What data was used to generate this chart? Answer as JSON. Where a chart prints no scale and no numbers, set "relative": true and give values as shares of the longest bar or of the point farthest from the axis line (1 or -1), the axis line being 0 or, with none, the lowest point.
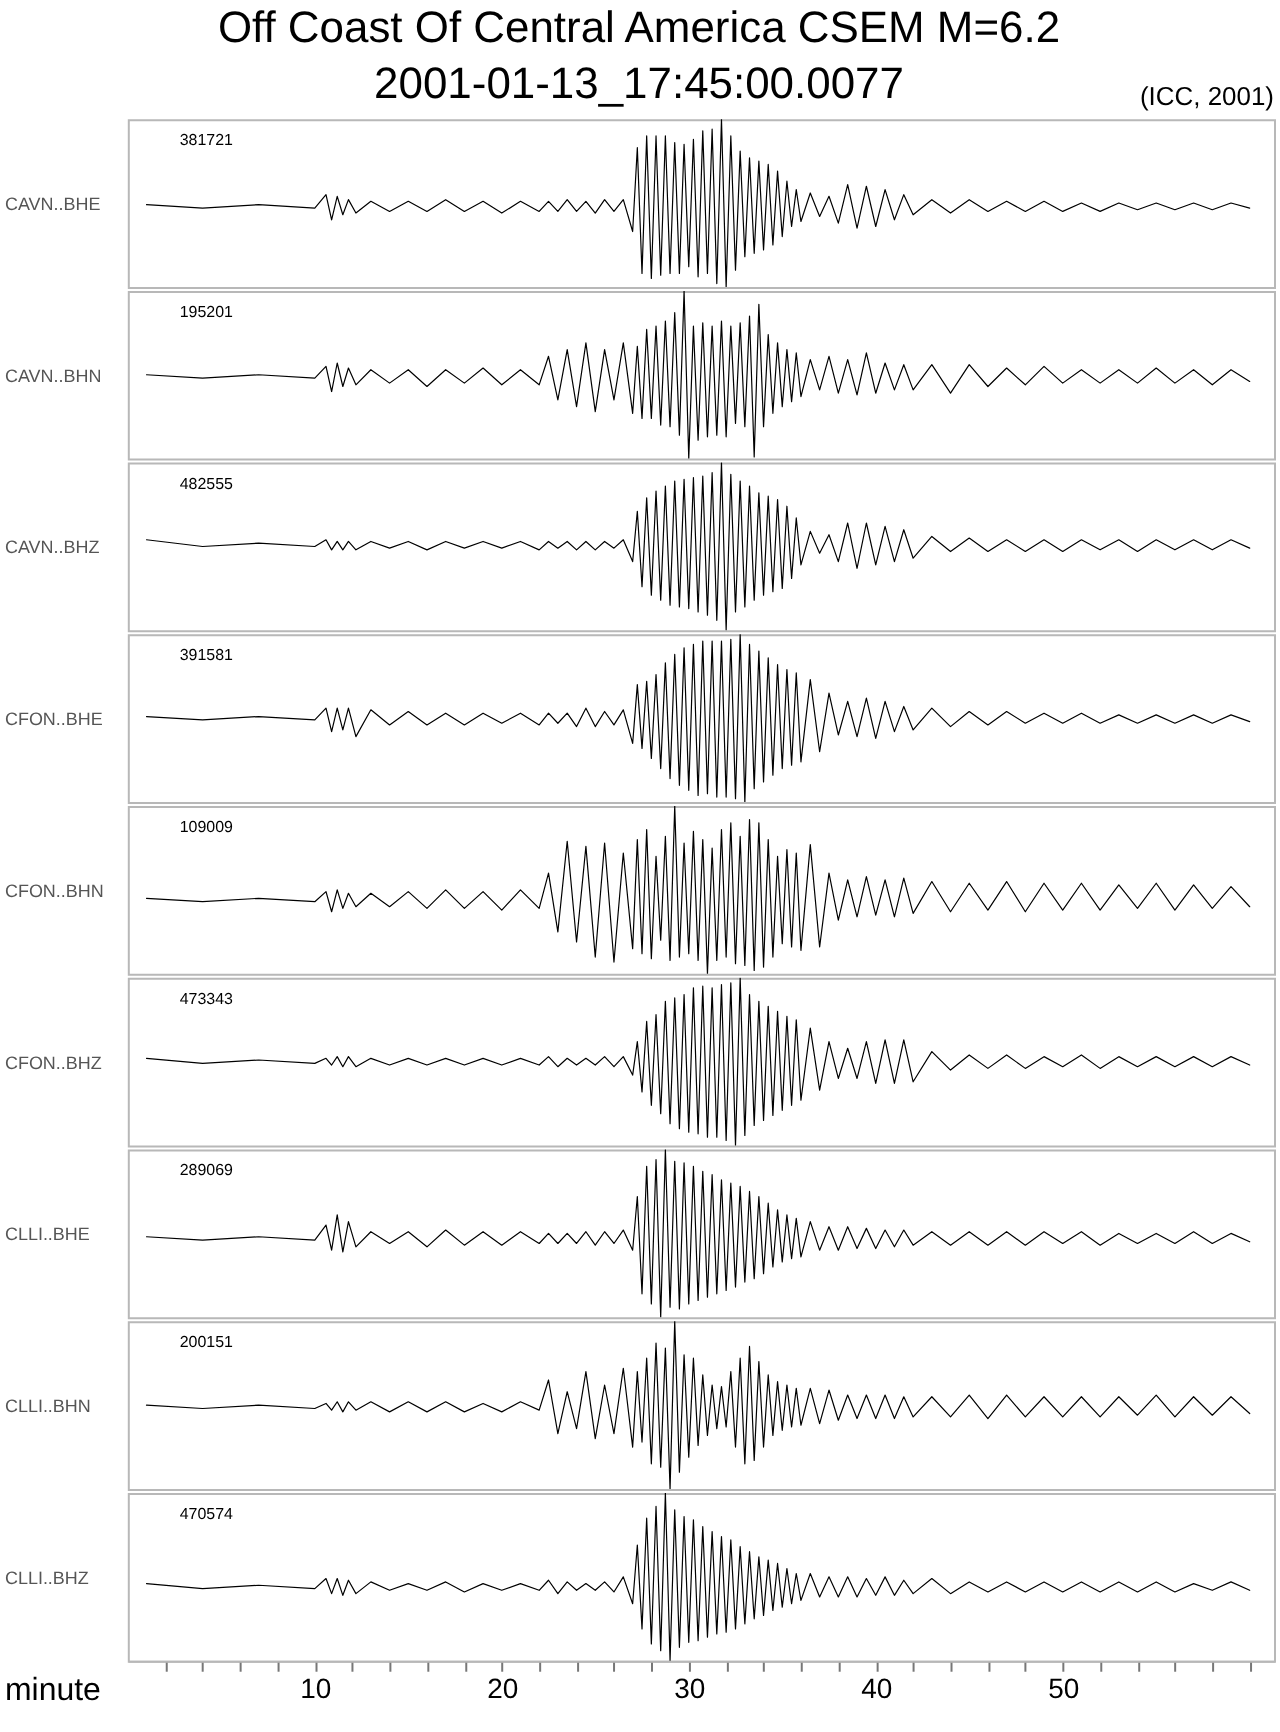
{
  "chart_data": [
    {
      "type": "line",
      "title": "Off Coast Of Central America CSEM M=6.2",
      "subtitle": "2001-01-13_17:45:00.0077",
      "annotations": [
        "(ICC, 2001)",
        "381721"
      ],
      "ylabel": "CAVN..BHE",
      "relative": true,
      "tick_labels": false,
      "xlim": [
        0,
        61.3
      ],
      "x": [
        1,
        4,
        7,
        10,
        10.6,
        10.9,
        11.2,
        11.5,
        11.8,
        12.2,
        13,
        14,
        15,
        16,
        17,
        18,
        19,
        20,
        21,
        22,
        22.5,
        23,
        23.5,
        24,
        24.5,
        25,
        25.5,
        26,
        26.5,
        27,
        27.25,
        27.5,
        27.75,
        28,
        28.25,
        28.5,
        28.75,
        29,
        29.25,
        29.5,
        29.75,
        30,
        30.25,
        30.5,
        30.75,
        31,
        31.25,
        31.5,
        31.75,
        32,
        32.25,
        32.5,
        32.75,
        33,
        33.25,
        33.5,
        33.75,
        34,
        34.25,
        34.5,
        34.75,
        35,
        35.25,
        35.5,
        35.75,
        36,
        36.5,
        37,
        37.5,
        38,
        38.5,
        39,
        39.5,
        40,
        40.5,
        41,
        41.5,
        42,
        43,
        44,
        45,
        46,
        47,
        48,
        49,
        50,
        51,
        52,
        53,
        54,
        55,
        56,
        57,
        58,
        59,
        60
      ],
      "series": [
        {
          "color": "#000000",
          "values": [
            0.49,
            0.47,
            0.49,
            0.47,
            0.55,
            0.4,
            0.54,
            0.43,
            0.52,
            0.44,
            0.51,
            0.45,
            0.51,
            0.45,
            0.52,
            0.45,
            0.51,
            0.44,
            0.51,
            0.45,
            0.51,
            0.45,
            0.52,
            0.45,
            0.51,
            0.44,
            0.52,
            0.45,
            0.52,
            0.33,
            0.83,
            0.08,
            0.9,
            0.05,
            0.9,
            0.07,
            0.9,
            0.08,
            0.86,
            0.08,
            0.85,
            0.12,
            0.88,
            0.06,
            0.93,
            0.08,
            0.94,
            0.02,
            1,
            0,
            0.9,
            0.1,
            0.81,
            0.18,
            0.77,
            0.2,
            0.75,
            0.22,
            0.73,
            0.25,
            0.69,
            0.3,
            0.63,
            0.36,
            0.58,
            0.39,
            0.56,
            0.42,
            0.54,
            0.38,
            0.61,
            0.35,
            0.6,
            0.36,
            0.58,
            0.4,
            0.55,
            0.43,
            0.52,
            0.44,
            0.52,
            0.45,
            0.51,
            0.45,
            0.51,
            0.45,
            0.5,
            0.45,
            0.5,
            0.46,
            0.5,
            0.46,
            0.5,
            0.46,
            0.5,
            0.47
          ]
        }
      ]
    },
    {
      "type": "line",
      "annotations": [
        "195201"
      ],
      "ylabel": "CAVN..BHN",
      "relative": true,
      "tick_labels": false,
      "xlim": [
        0,
        61.3
      ],
      "x": [
        1,
        4,
        7,
        10,
        10.6,
        10.9,
        11.2,
        11.5,
        11.8,
        12.2,
        13,
        14,
        15,
        16,
        17,
        18,
        19,
        20,
        21,
        22,
        22.5,
        23,
        23.5,
        24,
        24.5,
        25,
        25.5,
        26,
        26.5,
        27,
        27.25,
        27.5,
        27.75,
        28,
        28.25,
        28.5,
        28.75,
        29,
        29.25,
        29.5,
        29.75,
        30,
        30.25,
        30.5,
        30.75,
        31,
        31.25,
        31.5,
        31.75,
        32,
        32.25,
        32.5,
        32.75,
        33,
        33.25,
        33.5,
        33.75,
        34,
        34.25,
        34.5,
        34.75,
        35,
        35.25,
        35.5,
        35.75,
        36,
        36.5,
        37,
        37.5,
        38,
        38.5,
        39,
        39.5,
        40,
        40.5,
        41,
        41.5,
        42,
        43,
        44,
        45,
        46,
        47,
        48,
        49,
        50,
        51,
        52,
        53,
        54,
        55,
        56,
        57,
        58,
        59,
        60
      ],
      "series": [
        {
          "color": "#000000",
          "values": [
            0.5,
            0.48,
            0.5,
            0.48,
            0.55,
            0.4,
            0.57,
            0.43,
            0.54,
            0.44,
            0.53,
            0.45,
            0.53,
            0.43,
            0.53,
            0.45,
            0.54,
            0.44,
            0.53,
            0.44,
            0.61,
            0.35,
            0.65,
            0.31,
            0.69,
            0.28,
            0.65,
            0.35,
            0.69,
            0.27,
            0.67,
            0.24,
            0.77,
            0.24,
            0.79,
            0.2,
            0.82,
            0.19,
            0.87,
            0.14,
            1,
            0,
            0.79,
            0.11,
            0.81,
            0.13,
            0.79,
            0.14,
            0.82,
            0.13,
            0.79,
            0.21,
            0.81,
            0.19,
            0.85,
            0.01,
            0.92,
            0.19,
            0.74,
            0.27,
            0.69,
            0.31,
            0.65,
            0.34,
            0.63,
            0.37,
            0.59,
            0.41,
            0.61,
            0.39,
            0.59,
            0.38,
            0.63,
            0.39,
            0.57,
            0.41,
            0.56,
            0.41,
            0.56,
            0.39,
            0.56,
            0.43,
            0.54,
            0.44,
            0.55,
            0.45,
            0.53,
            0.45,
            0.53,
            0.45,
            0.54,
            0.45,
            0.53,
            0.44,
            0.53,
            0.46
          ]
        }
      ]
    },
    {
      "type": "line",
      "annotations": [
        "482555"
      ],
      "ylabel": "CAVN..BHZ",
      "relative": true,
      "tick_labels": false,
      "xlim": [
        0,
        61.3
      ],
      "x": [
        1,
        4,
        7,
        10,
        10.6,
        10.9,
        11.2,
        11.5,
        11.8,
        12.2,
        13,
        14,
        15,
        16,
        17,
        18,
        19,
        20,
        21,
        22,
        22.5,
        23,
        23.5,
        24,
        24.5,
        25,
        25.5,
        26,
        26.5,
        27,
        27.25,
        27.5,
        27.75,
        28,
        28.25,
        28.5,
        28.75,
        29,
        29.25,
        29.5,
        29.75,
        30,
        30.25,
        30.5,
        30.75,
        31,
        31.25,
        31.5,
        31.75,
        32,
        32.25,
        32.5,
        32.75,
        33,
        33.25,
        33.5,
        33.75,
        34,
        34.25,
        34.5,
        34.75,
        35,
        35.25,
        35.5,
        35.75,
        36,
        36.5,
        37,
        37.5,
        38,
        38.5,
        39,
        39.5,
        40,
        40.5,
        41,
        41.5,
        42,
        43,
        44,
        45,
        46,
        47,
        48,
        49,
        50,
        51,
        52,
        53,
        54,
        55,
        56,
        57,
        58,
        59,
        60
      ],
      "series": [
        {
          "color": "#000000",
          "values": [
            0.54,
            0.5,
            0.52,
            0.5,
            0.54,
            0.48,
            0.53,
            0.48,
            0.53,
            0.48,
            0.53,
            0.49,
            0.53,
            0.48,
            0.53,
            0.49,
            0.53,
            0.49,
            0.53,
            0.48,
            0.53,
            0.49,
            0.53,
            0.48,
            0.53,
            0.48,
            0.53,
            0.49,
            0.54,
            0.41,
            0.71,
            0.26,
            0.79,
            0.21,
            0.83,
            0.18,
            0.86,
            0.15,
            0.89,
            0.14,
            0.9,
            0.13,
            0.91,
            0.11,
            0.92,
            0.09,
            0.94,
            0.06,
            1,
            0,
            0.93,
            0.11,
            0.89,
            0.14,
            0.86,
            0.18,
            0.82,
            0.21,
            0.8,
            0.23,
            0.78,
            0.25,
            0.74,
            0.31,
            0.67,
            0.39,
            0.59,
            0.46,
            0.57,
            0.41,
            0.64,
            0.37,
            0.64,
            0.39,
            0.62,
            0.41,
            0.6,
            0.43,
            0.56,
            0.47,
            0.55,
            0.47,
            0.54,
            0.47,
            0.54,
            0.47,
            0.54,
            0.48,
            0.54,
            0.47,
            0.54,
            0.48,
            0.54,
            0.48,
            0.54,
            0.49
          ]
        }
      ]
    },
    {
      "type": "line",
      "annotations": [
        "391581"
      ],
      "ylabel": "CFON..BHE",
      "relative": true,
      "tick_labels": false,
      "xlim": [
        0,
        61.3
      ],
      "x": [
        1,
        4,
        7,
        10,
        10.6,
        10.9,
        11.2,
        11.5,
        11.8,
        12.2,
        13,
        14,
        15,
        16,
        17,
        18,
        19,
        20,
        21,
        22,
        22.5,
        23,
        23.5,
        24,
        24.5,
        25,
        25.5,
        26,
        26.5,
        27,
        27.25,
        27.5,
        27.75,
        28,
        28.25,
        28.5,
        28.75,
        29,
        29.25,
        29.5,
        29.75,
        30,
        30.25,
        30.5,
        30.75,
        31,
        31.25,
        31.5,
        31.75,
        32,
        32.25,
        32.5,
        32.75,
        33,
        33.25,
        33.5,
        33.75,
        34,
        34.25,
        34.5,
        34.75,
        35,
        35.25,
        35.5,
        35.75,
        36,
        36.5,
        37,
        37.5,
        38,
        38.5,
        39,
        39.5,
        40,
        40.5,
        41,
        41.5,
        42,
        43,
        44,
        45,
        46,
        47,
        48,
        49,
        50,
        51,
        52,
        53,
        54,
        55,
        56,
        57,
        58,
        59,
        60
      ],
      "series": [
        {
          "color": "#000000",
          "values": [
            0.51,
            0.49,
            0.51,
            0.49,
            0.56,
            0.42,
            0.56,
            0.43,
            0.56,
            0.39,
            0.55,
            0.46,
            0.54,
            0.46,
            0.53,
            0.46,
            0.53,
            0.47,
            0.53,
            0.46,
            0.53,
            0.47,
            0.53,
            0.45,
            0.56,
            0.45,
            0.54,
            0.46,
            0.55,
            0.35,
            0.7,
            0.32,
            0.72,
            0.26,
            0.76,
            0.2,
            0.83,
            0.14,
            0.88,
            0.1,
            0.92,
            0.07,
            0.94,
            0.04,
            0.96,
            0.05,
            0.96,
            0.03,
            0.96,
            0.03,
            0.97,
            0.02,
            1,
            0,
            0.94,
            0.08,
            0.9,
            0.12,
            0.86,
            0.16,
            0.82,
            0.2,
            0.79,
            0.22,
            0.77,
            0.24,
            0.73,
            0.3,
            0.65,
            0.4,
            0.6,
            0.39,
            0.62,
            0.38,
            0.6,
            0.42,
            0.57,
            0.43,
            0.56,
            0.45,
            0.54,
            0.46,
            0.54,
            0.47,
            0.53,
            0.47,
            0.53,
            0.47,
            0.52,
            0.47,
            0.52,
            0.47,
            0.52,
            0.47,
            0.52,
            0.48
          ]
        }
      ]
    },
    {
      "type": "line",
      "annotations": [
        "109009"
      ],
      "ylabel": "CFON..BHN",
      "relative": true,
      "tick_labels": false,
      "xlim": [
        0,
        61.3
      ],
      "x": [
        1,
        4,
        7,
        10,
        10.6,
        10.9,
        11.2,
        11.5,
        11.8,
        12.2,
        13,
        14,
        15,
        16,
        17,
        18,
        19,
        20,
        21,
        22,
        22.5,
        23,
        23.5,
        24,
        24.5,
        25,
        25.5,
        26,
        26.5,
        27,
        27.25,
        27.5,
        27.75,
        28,
        28.25,
        28.5,
        28.75,
        29,
        29.25,
        29.5,
        29.75,
        30,
        30.25,
        30.5,
        30.75,
        31,
        31.25,
        31.5,
        31.75,
        32,
        32.25,
        32.5,
        32.75,
        33,
        33.25,
        33.5,
        33.75,
        34,
        34.25,
        34.5,
        34.75,
        35,
        35.25,
        35.5,
        35.75,
        36,
        36.5,
        37,
        37.5,
        38,
        38.5,
        39,
        39.5,
        40,
        40.5,
        41,
        41.5,
        42,
        43,
        44,
        45,
        46,
        47,
        48,
        49,
        50,
        51,
        52,
        53,
        54,
        55,
        56,
        57,
        58,
        59,
        60
      ],
      "series": [
        {
          "color": "#000000",
          "values": [
            0.45,
            0.43,
            0.45,
            0.43,
            0.49,
            0.37,
            0.5,
            0.39,
            0.48,
            0.4,
            0.48,
            0.4,
            0.49,
            0.39,
            0.5,
            0.39,
            0.49,
            0.38,
            0.5,
            0.39,
            0.6,
            0.25,
            0.79,
            0.19,
            0.76,
            0.1,
            0.78,
            0.07,
            0.72,
            0.15,
            0.8,
            0.12,
            0.86,
            0.09,
            0.7,
            0.2,
            0.82,
            0.08,
            1,
            0.1,
            0.78,
            0.12,
            0.85,
            0.08,
            0.8,
            0,
            0.75,
            0.08,
            0.86,
            0.1,
            0.9,
            0.06,
            0.82,
            0.05,
            0.92,
            0.02,
            0.9,
            0.04,
            0.8,
            0.1,
            0.7,
            0.18,
            0.74,
            0.16,
            0.72,
            0.14,
            0.77,
            0.16,
            0.6,
            0.32,
            0.56,
            0.34,
            0.58,
            0.35,
            0.56,
            0.34,
            0.57,
            0.36,
            0.55,
            0.37,
            0.54,
            0.38,
            0.55,
            0.37,
            0.54,
            0.38,
            0.54,
            0.38,
            0.53,
            0.39,
            0.54,
            0.38,
            0.53,
            0.39,
            0.52,
            0.4
          ]
        }
      ]
    },
    {
      "type": "line",
      "annotations": [
        "473343"
      ],
      "ylabel": "CFON..BHZ",
      "relative": true,
      "tick_labels": false,
      "xlim": [
        0,
        61.3
      ],
      "x": [
        1,
        4,
        7,
        10,
        10.6,
        10.9,
        11.2,
        11.5,
        11.8,
        12.2,
        13,
        14,
        15,
        16,
        17,
        18,
        19,
        20,
        21,
        22,
        22.5,
        23,
        23.5,
        24,
        24.5,
        25,
        25.5,
        26,
        26.5,
        27,
        27.25,
        27.5,
        27.75,
        28,
        28.25,
        28.5,
        28.75,
        29,
        29.25,
        29.5,
        29.75,
        30,
        30.25,
        30.5,
        30.75,
        31,
        31.25,
        31.5,
        31.75,
        32,
        32.25,
        32.5,
        32.75,
        33,
        33.25,
        33.5,
        33.75,
        34,
        34.25,
        34.5,
        34.75,
        35,
        35.25,
        35.5,
        35.75,
        36,
        36.5,
        37,
        37.5,
        38,
        38.5,
        39,
        39.5,
        40,
        40.5,
        41,
        41.5,
        42,
        43,
        44,
        45,
        46,
        47,
        48,
        49,
        50,
        51,
        52,
        53,
        54,
        55,
        56,
        57,
        58,
        59,
        60
      ],
      "series": [
        {
          "color": "#000000",
          "values": [
            0.52,
            0.49,
            0.51,
            0.49,
            0.52,
            0.48,
            0.53,
            0.47,
            0.53,
            0.47,
            0.52,
            0.48,
            0.52,
            0.48,
            0.52,
            0.48,
            0.52,
            0.48,
            0.52,
            0.48,
            0.53,
            0.47,
            0.52,
            0.48,
            0.52,
            0.48,
            0.53,
            0.47,
            0.53,
            0.42,
            0.62,
            0.32,
            0.74,
            0.24,
            0.78,
            0.19,
            0.86,
            0.13,
            0.88,
            0.1,
            0.9,
            0.08,
            0.94,
            0.07,
            0.95,
            0.05,
            0.94,
            0.05,
            0.96,
            0.03,
            0.97,
            0,
            1,
            0.06,
            0.9,
            0.12,
            0.86,
            0.15,
            0.83,
            0.18,
            0.8,
            0.21,
            0.77,
            0.24,
            0.75,
            0.27,
            0.7,
            0.33,
            0.62,
            0.4,
            0.58,
            0.4,
            0.62,
            0.37,
            0.63,
            0.37,
            0.63,
            0.38,
            0.56,
            0.45,
            0.54,
            0.46,
            0.54,
            0.46,
            0.53,
            0.47,
            0.54,
            0.46,
            0.53,
            0.47,
            0.53,
            0.47,
            0.53,
            0.47,
            0.53,
            0.48
          ]
        }
      ]
    },
    {
      "type": "line",
      "annotations": [
        "289069"
      ],
      "ylabel": "CLLI..BHE",
      "relative": true,
      "tick_labels": false,
      "xlim": [
        0,
        61.3
      ],
      "x": [
        1,
        4,
        7,
        10,
        10.6,
        10.9,
        11.2,
        11.5,
        11.8,
        12.2,
        13,
        14,
        15,
        16,
        17,
        18,
        19,
        20,
        21,
        22,
        22.5,
        23,
        23.5,
        24,
        24.5,
        25,
        25.5,
        26,
        26.5,
        27,
        27.25,
        27.5,
        27.75,
        28,
        28.25,
        28.5,
        28.75,
        29,
        29.25,
        29.5,
        29.75,
        30,
        30.25,
        30.5,
        30.75,
        31,
        31.25,
        31.5,
        31.75,
        32,
        32.25,
        32.5,
        32.75,
        33,
        33.25,
        33.5,
        33.75,
        34,
        34.25,
        34.5,
        34.75,
        35,
        35.25,
        35.5,
        35.75,
        36,
        36.5,
        37,
        37.5,
        38,
        38.5,
        39,
        39.5,
        40,
        40.5,
        41,
        41.5,
        42,
        43,
        44,
        45,
        46,
        47,
        48,
        49,
        50,
        51,
        52,
        53,
        54,
        55,
        56,
        57,
        58,
        59,
        60
      ],
      "series": [
        {
          "color": "#000000",
          "values": [
            0.48,
            0.46,
            0.48,
            0.46,
            0.55,
            0.4,
            0.61,
            0.39,
            0.57,
            0.42,
            0.51,
            0.44,
            0.51,
            0.42,
            0.52,
            0.43,
            0.51,
            0.43,
            0.51,
            0.44,
            0.5,
            0.44,
            0.5,
            0.44,
            0.51,
            0.43,
            0.51,
            0.44,
            0.52,
            0.4,
            0.72,
            0.14,
            0.9,
            0.08,
            0.94,
            0,
            1,
            0.06,
            0.93,
            0.05,
            0.92,
            0.08,
            0.9,
            0.1,
            0.87,
            0.12,
            0.85,
            0.14,
            0.82,
            0.16,
            0.8,
            0.18,
            0.78,
            0.21,
            0.75,
            0.23,
            0.72,
            0.26,
            0.68,
            0.3,
            0.64,
            0.33,
            0.61,
            0.35,
            0.59,
            0.36,
            0.57,
            0.4,
            0.54,
            0.4,
            0.54,
            0.41,
            0.53,
            0.41,
            0.52,
            0.42,
            0.52,
            0.43,
            0.51,
            0.43,
            0.51,
            0.43,
            0.51,
            0.43,
            0.51,
            0.44,
            0.51,
            0.43,
            0.5,
            0.44,
            0.5,
            0.44,
            0.51,
            0.44,
            0.5,
            0.45
          ]
        }
      ]
    },
    {
      "type": "line",
      "annotations": [
        "200151"
      ],
      "ylabel": "CLLI..BHN",
      "relative": true,
      "tick_labels": false,
      "xlim": [
        0,
        61.3
      ],
      "x": [
        1,
        4,
        7,
        10,
        10.6,
        10.9,
        11.2,
        11.5,
        11.8,
        12.2,
        13,
        14,
        15,
        16,
        17,
        18,
        19,
        20,
        21,
        22,
        22.5,
        23,
        23.5,
        24,
        24.5,
        25,
        25.5,
        26,
        26.5,
        27,
        27.25,
        27.5,
        27.75,
        28,
        28.25,
        28.5,
        28.75,
        29,
        29.25,
        29.5,
        29.75,
        30,
        30.25,
        30.5,
        30.75,
        31,
        31.25,
        31.5,
        31.75,
        32,
        32.25,
        32.5,
        32.75,
        33,
        33.25,
        33.5,
        33.75,
        34,
        34.25,
        34.5,
        34.75,
        35,
        35.25,
        35.5,
        35.75,
        36,
        36.5,
        37,
        37.5,
        38,
        38.5,
        39,
        39.5,
        40,
        40.5,
        41,
        41.5,
        42,
        43,
        44,
        45,
        46,
        47,
        48,
        49,
        50,
        51,
        52,
        53,
        54,
        55,
        56,
        57,
        58,
        59,
        60
      ],
      "series": [
        {
          "color": "#000000",
          "values": [
            0.5,
            0.48,
            0.5,
            0.48,
            0.51,
            0.47,
            0.52,
            0.46,
            0.52,
            0.47,
            0.52,
            0.46,
            0.52,
            0.46,
            0.52,
            0.46,
            0.51,
            0.46,
            0.52,
            0.47,
            0.65,
            0.33,
            0.58,
            0.36,
            0.7,
            0.3,
            0.62,
            0.33,
            0.72,
            0.25,
            0.7,
            0.28,
            0.78,
            0.15,
            0.87,
            0.13,
            0.84,
            0,
            1,
            0.1,
            0.8,
            0.19,
            0.78,
            0.26,
            0.68,
            0.32,
            0.62,
            0.36,
            0.61,
            0.37,
            0.7,
            0.25,
            0.78,
            0.15,
            0.85,
            0.17,
            0.76,
            0.25,
            0.68,
            0.32,
            0.64,
            0.35,
            0.62,
            0.37,
            0.6,
            0.38,
            0.6,
            0.39,
            0.59,
            0.41,
            0.56,
            0.42,
            0.56,
            0.42,
            0.56,
            0.42,
            0.55,
            0.43,
            0.55,
            0.43,
            0.56,
            0.42,
            0.56,
            0.43,
            0.55,
            0.43,
            0.55,
            0.43,
            0.55,
            0.44,
            0.56,
            0.43,
            0.55,
            0.44,
            0.55,
            0.45
          ]
        }
      ]
    },
    {
      "type": "line",
      "annotations": [
        "470574"
      ],
      "ylabel": "CLLI..BHZ",
      "xlabel": "minute",
      "relative": true,
      "tick_labels": "x",
      "xlim": [
        0,
        61.3
      ],
      "xticks": [
        {
          "value": 2,
          "label": null
        },
        {
          "value": 4,
          "label": null
        },
        {
          "value": 6,
          "label": null
        },
        {
          "value": 8,
          "label": null
        },
        10,
        {
          "value": 12,
          "label": null
        },
        {
          "value": 14,
          "label": null
        },
        {
          "value": 16,
          "label": null
        },
        {
          "value": 18,
          "label": null
        },
        20,
        {
          "value": 22,
          "label": null
        },
        {
          "value": 24,
          "label": null
        },
        {
          "value": 26,
          "label": null
        },
        {
          "value": 28,
          "label": null
        },
        30,
        {
          "value": 32,
          "label": null
        },
        {
          "value": 34,
          "label": null
        },
        {
          "value": 36,
          "label": null
        },
        {
          "value": 38,
          "label": null
        },
        40,
        {
          "value": 42,
          "label": null
        },
        {
          "value": 44,
          "label": null
        },
        {
          "value": 46,
          "label": null
        },
        {
          "value": 48,
          "label": null
        },
        50,
        {
          "value": 52,
          "label": null
        },
        {
          "value": 54,
          "label": null
        },
        {
          "value": 56,
          "label": null
        },
        {
          "value": 58,
          "label": null
        },
        {
          "value": 60,
          "label": null
        }
      ],
      "x": [
        1,
        4,
        7,
        10,
        10.6,
        10.9,
        11.2,
        11.5,
        11.8,
        12.2,
        13,
        14,
        15,
        16,
        17,
        18,
        19,
        20,
        21,
        22,
        22.5,
        23,
        23.5,
        24,
        24.5,
        25,
        25.5,
        26,
        26.5,
        27,
        27.25,
        27.5,
        27.75,
        28,
        28.25,
        28.5,
        28.75,
        29,
        29.25,
        29.5,
        29.75,
        30,
        30.25,
        30.5,
        30.75,
        31,
        31.25,
        31.5,
        31.75,
        32,
        32.25,
        32.5,
        32.75,
        33,
        33.25,
        33.5,
        33.75,
        34,
        34.25,
        34.5,
        34.75,
        35,
        35.25,
        35.5,
        35.75,
        36,
        36.5,
        37,
        37.5,
        38,
        38.5,
        39,
        39.5,
        40,
        40.5,
        41,
        41.5,
        42,
        43,
        44,
        45,
        46,
        47,
        48,
        49,
        50,
        51,
        52,
        53,
        54,
        55,
        56,
        57,
        58,
        59,
        60
      ],
      "series": [
        {
          "color": "#000000",
          "values": [
            0.46,
            0.43,
            0.45,
            0.43,
            0.49,
            0.4,
            0.49,
            0.39,
            0.48,
            0.4,
            0.47,
            0.42,
            0.46,
            0.42,
            0.47,
            0.41,
            0.46,
            0.42,
            0.46,
            0.42,
            0.48,
            0.4,
            0.47,
            0.42,
            0.46,
            0.42,
            0.47,
            0.41,
            0.5,
            0.34,
            0.69,
            0.19,
            0.85,
            0.1,
            0.92,
            0.06,
            1,
            0,
            0.9,
            0.08,
            0.86,
            0.11,
            0.84,
            0.12,
            0.8,
            0.14,
            0.77,
            0.16,
            0.74,
            0.17,
            0.72,
            0.19,
            0.68,
            0.22,
            0.65,
            0.25,
            0.62,
            0.27,
            0.6,
            0.3,
            0.58,
            0.32,
            0.55,
            0.34,
            0.52,
            0.36,
            0.52,
            0.38,
            0.5,
            0.38,
            0.5,
            0.38,
            0.49,
            0.39,
            0.5,
            0.39,
            0.48,
            0.4,
            0.49,
            0.4,
            0.47,
            0.41,
            0.47,
            0.41,
            0.47,
            0.41,
            0.47,
            0.41,
            0.47,
            0.41,
            0.47,
            0.41,
            0.46,
            0.42,
            0.47,
            0.42
          ]
        }
      ]
    }
  ]
}
